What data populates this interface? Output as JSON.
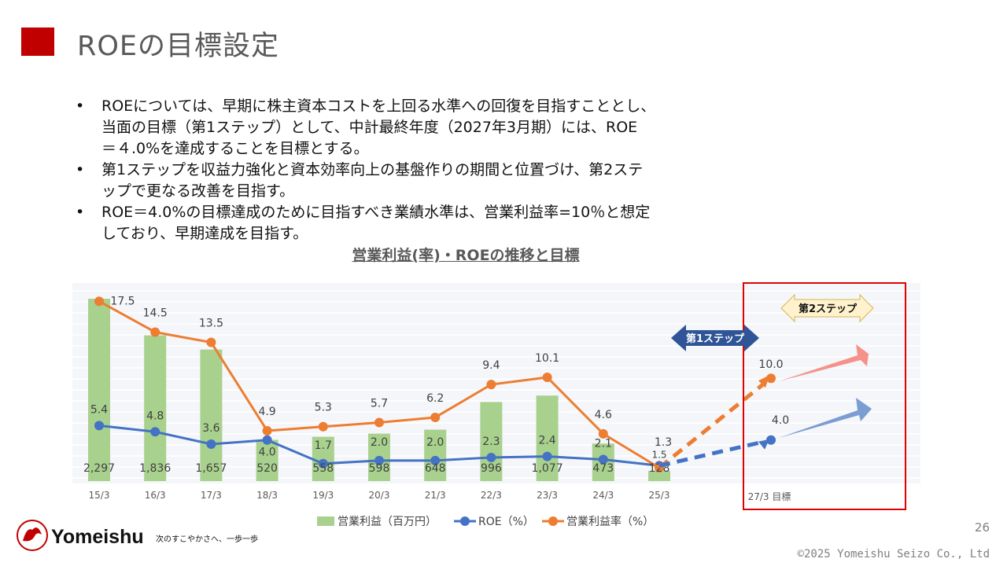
{
  "page": {
    "title": "ROEの目標設定",
    "bullets": [
      [
        "ROEについては、早期に株主資本コストを上回る水準への回復を目指すこととし、",
        "当面の目標（第1ステップ）として、中計最終年度（2027年3月期）には、ROE",
        "＝４.0%を達成することを目標とする。"
      ],
      [
        "第1ステップを収益力強化と資本効率向上の基盤作りの期間と位置づけ、第2ステ",
        "ップで更なる改善を目指す。"
      ],
      [
        "ROE＝4.0%の目標達成のために目指すべき業績水準は、営業利益率=10％と想定",
        "しており、早期達成を目指す。"
      ]
    ],
    "bullet_marker": "•",
    "page_number": "26",
    "copyright": "©2025 Yomeishu Seizo Co., Ltd",
    "brand": {
      "name": "Yomeishu",
      "tagline": "次のすこやかさへ、一歩一歩",
      "color": "#c00000"
    }
  },
  "chart_data": {
    "type": "bar-line",
    "title": "営業利益(率)・ROEの推移と目標",
    "categories": [
      "15/3",
      "16/3",
      "17/3",
      "18/3",
      "19/3",
      "20/3",
      "21/3",
      "22/3",
      "23/3",
      "24/3",
      "25/3"
    ],
    "target_category": "27/3 目標",
    "series": [
      {
        "name": "営業利益（百万円）",
        "kind": "bar",
        "color": "#a9d18e",
        "values": [
          2297,
          1836,
          1657,
          520,
          558,
          598,
          648,
          996,
          1077,
          473,
          128
        ],
        "labels": [
          "2,297",
          "1,836",
          "1,657",
          "520",
          "558",
          "598",
          "648",
          "996",
          "1,077",
          "473",
          "128"
        ]
      },
      {
        "name": "ROE（%）",
        "kind": "line",
        "color": "#4472c4",
        "values": [
          5.4,
          4.8,
          3.6,
          4.0,
          1.7,
          2.0,
          2.0,
          2.3,
          2.4,
          2.1,
          1.5
        ],
        "labels": [
          "5.4",
          "4.8",
          "3.6",
          "4.0",
          "1.7",
          "2.0",
          "2.0",
          "2.3",
          "2.4",
          "2.1",
          "1.5"
        ],
        "target": 4.0,
        "target_label": "4.0"
      },
      {
        "name": "営業利益率（%）",
        "kind": "line",
        "color": "#ed7d31",
        "values": [
          17.5,
          14.5,
          13.5,
          4.9,
          5.3,
          5.7,
          6.2,
          9.4,
          10.1,
          4.6,
          1.3
        ],
        "labels": [
          "17.5",
          "14.5",
          "13.5",
          "4.9",
          "5.3",
          "5.7",
          "6.2",
          "9.4",
          "10.1",
          "4.6",
          "1.3"
        ],
        "target": 10.0,
        "target_label": "10.0"
      }
    ],
    "steps": {
      "step1": "第1ステップ",
      "step2": "第2ステップ"
    },
    "grid": true,
    "legend_position": "bottom"
  }
}
